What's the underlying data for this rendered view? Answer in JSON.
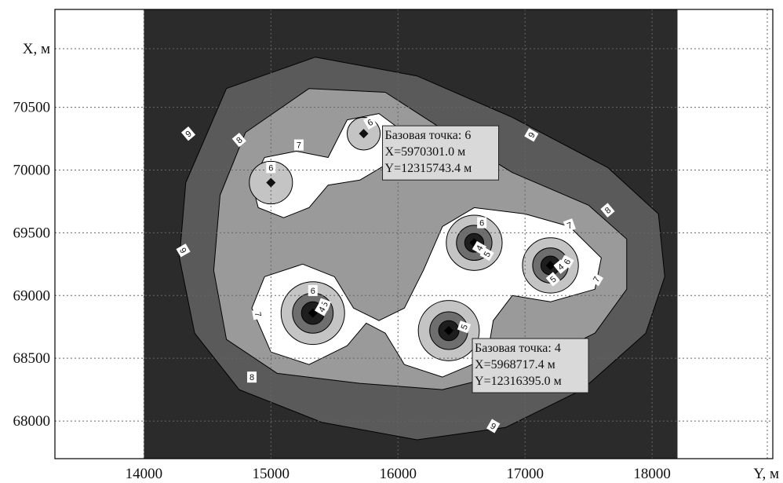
{
  "chart_data": {
    "type": "contour",
    "xlabel": "Y, м",
    "ylabel": "X, м",
    "x_ticks": [
      14000,
      15000,
      16000,
      17000,
      18000
    ],
    "y_ticks": [
      68000,
      68500,
      69000,
      69500,
      70000,
      70500
    ],
    "xlim": [
      13300,
      18950
    ],
    "ylim": [
      67700,
      71280
    ],
    "grid": true,
    "data_extent": {
      "x": [
        14000,
        18200
      ],
      "y": [
        67700,
        71280
      ]
    },
    "levels": [
      4,
      5,
      6,
      7,
      8,
      9
    ],
    "fill_colors": {
      "background": "#2b2b2b",
      "l9": "#5a5a5a",
      "l8": "#9a9a9a",
      "l7": "#ffffff",
      "l6": "#c4c4c4",
      "l5": "#6e6e6e",
      "l4": "#1e1e1e"
    },
    "sources": [
      {
        "x": 15000,
        "y": 69900,
        "max_level": 6
      },
      {
        "x": 15730,
        "y": 70290,
        "max_level": 6
      },
      {
        "x": 15330,
        "y": 68860,
        "max_level": 4
      },
      {
        "x": 16600,
        "y": 69420,
        "max_level": 4
      },
      {
        "x": 17200,
        "y": 69240,
        "max_level": 4
      },
      {
        "x": 16400,
        "y": 68720,
        "max_level": 4
      }
    ],
    "contour_labels": [
      {
        "text": "9",
        "x": 14350,
        "y": 70290,
        "angle": -40
      },
      {
        "text": "9",
        "x": 14310,
        "y": 69360,
        "angle": 60
      },
      {
        "text": "9",
        "x": 17050,
        "y": 70280,
        "angle": -60
      },
      {
        "text": "9",
        "x": 16750,
        "y": 67960,
        "angle": 30
      },
      {
        "text": "8",
        "x": 14750,
        "y": 70240,
        "angle": -40
      },
      {
        "text": "8",
        "x": 17650,
        "y": 69680,
        "angle": -40
      },
      {
        "text": "8",
        "x": 14850,
        "y": 68350,
        "angle": 0
      },
      {
        "text": "7",
        "x": 15220,
        "y": 70200,
        "angle": 0
      },
      {
        "text": "7",
        "x": 17350,
        "y": 69560,
        "angle": -20
      },
      {
        "text": "7",
        "x": 17560,
        "y": 69130,
        "angle": -60
      },
      {
        "text": "7",
        "x": 14900,
        "y": 68850,
        "angle": 80
      },
      {
        "text": "6",
        "x": 15000,
        "y": 70020,
        "angle": 0
      },
      {
        "text": "6",
        "x": 15780,
        "y": 70380,
        "angle": -30
      },
      {
        "text": "6",
        "x": 16660,
        "y": 69580,
        "angle": 0
      },
      {
        "text": "6",
        "x": 17330,
        "y": 69270,
        "angle": -60
      },
      {
        "text": "6",
        "x": 15330,
        "y": 69040,
        "angle": 0
      },
      {
        "text": "5",
        "x": 16700,
        "y": 69330,
        "angle": -60
      },
      {
        "text": "5",
        "x": 17220,
        "y": 69130,
        "angle": -40
      },
      {
        "text": "5",
        "x": 15420,
        "y": 68930,
        "angle": -70
      },
      {
        "text": "4",
        "x": 16640,
        "y": 69380,
        "angle": -60
      },
      {
        "text": "4",
        "x": 17280,
        "y": 69230,
        "angle": -40
      },
      {
        "text": "4",
        "x": 15400,
        "y": 68890,
        "angle": -60
      },
      {
        "text": "5",
        "x": 16520,
        "y": 68750,
        "angle": -70
      }
    ],
    "annotations": [
      {
        "anchor": {
          "x": 15730,
          "y": 70290
        },
        "lines": [
          "Базовая точка: 6",
          "X=5970301.0 м",
          "Y=12315743.4 м"
        ]
      },
      {
        "anchor": {
          "x": 16400,
          "y": 68720
        },
        "lines": [
          "Базовая точка: 4",
          "X=5968717.4 м",
          "Y=12316395.0 м"
        ]
      }
    ]
  }
}
